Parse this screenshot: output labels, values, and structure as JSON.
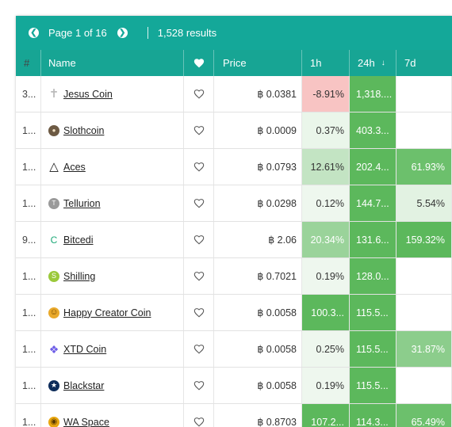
{
  "pagination": {
    "page_label": "Page 1 of 16",
    "results": "1,528 results"
  },
  "columns": {
    "rank": "#",
    "name": "Name",
    "price": "Price",
    "h1": "1h",
    "h24": "24h",
    "d7": "7d"
  },
  "rows": [
    {
      "rank": "3...",
      "name": "Jesus Coin",
      "icon": "cross-icon",
      "price": "฿ 0.0381",
      "h1": "-8.91%",
      "h1_color": "#f8c4c3",
      "h1_text": "#333333",
      "h24": "1,318....",
      "h24_color": "#5cb85c",
      "d7": "",
      "d7_color": "#ffffff",
      "d7_text": "#ffffff"
    },
    {
      "rank": "1...",
      "name": "Slothcoin",
      "icon": "sloth-icon",
      "price": "฿ 0.0009",
      "h1": "0.37%",
      "h1_color": "#eaf6ea",
      "h1_text": "#333333",
      "h24": "403.3...",
      "h24_color": "#5cb85c",
      "d7": "",
      "d7_color": "#ffffff",
      "d7_text": "#ffffff"
    },
    {
      "rank": "1...",
      "name": "Aces",
      "icon": "triangle-icon",
      "price": "฿ 0.0793",
      "h1": "12.61%",
      "h1_color": "#c3e4c3",
      "h1_text": "#333333",
      "h24": "202.4...",
      "h24_color": "#5cb85c",
      "d7": "61.93%",
      "d7_color": "#6cc06c",
      "d7_text": "#ffffff"
    },
    {
      "rank": "1...",
      "name": "Tellurion",
      "icon": "tellurion-icon",
      "price": "฿ 0.0298",
      "h1": "0.12%",
      "h1_color": "#eef7ee",
      "h1_text": "#333333",
      "h24": "144.7...",
      "h24_color": "#5cb85c",
      "d7": "5.54%",
      "d7_color": "#e2f2e2",
      "d7_text": "#333333"
    },
    {
      "rank": "9...",
      "name": "Bitcedi",
      "icon": "bitcedi-icon",
      "price": "฿ 2.06",
      "h1": "20.34%",
      "h1_color": "#9ad39a",
      "h1_text": "#ffffff",
      "h24": "131.6...",
      "h24_color": "#5cb85c",
      "d7": "159.32%",
      "d7_color": "#5cb85c",
      "d7_text": "#ffffff"
    },
    {
      "rank": "1...",
      "name": "Shilling",
      "icon": "shilling-icon",
      "price": "฿ 0.7021",
      "h1": "0.19%",
      "h1_color": "#eef7ee",
      "h1_text": "#333333",
      "h24": "128.0...",
      "h24_color": "#5cb85c",
      "d7": "",
      "d7_color": "#ffffff",
      "d7_text": "#ffffff"
    },
    {
      "rank": "1...",
      "name": "Happy Creator Coin",
      "icon": "smiley-coin-icon",
      "price": "฿ 0.0058",
      "h1": "100.3...",
      "h1_color": "#5cb85c",
      "h1_text": "#ffffff",
      "h24": "115.5...",
      "h24_color": "#5cb85c",
      "d7": "",
      "d7_color": "#ffffff",
      "d7_text": "#ffffff"
    },
    {
      "rank": "1...",
      "name": "XTD Coin",
      "icon": "xtd-icon",
      "price": "฿ 0.0058",
      "h1": "0.25%",
      "h1_color": "#eef7ee",
      "h1_text": "#333333",
      "h24": "115.5...",
      "h24_color": "#5cb85c",
      "d7": "31.87%",
      "d7_color": "#8ccd8c",
      "d7_text": "#ffffff"
    },
    {
      "rank": "1...",
      "name": "Blackstar",
      "icon": "blackstar-icon",
      "price": "฿ 0.0058",
      "h1": "0.19%",
      "h1_color": "#eef7ee",
      "h1_text": "#333333",
      "h24": "115.5...",
      "h24_color": "#5cb85c",
      "d7": "",
      "d7_color": "#ffffff",
      "d7_text": "#ffffff"
    },
    {
      "rank": "1...",
      "name": "WA Space",
      "icon": "wa-space-icon",
      "price": "฿ 0.8703",
      "h1": "107.2...",
      "h1_color": "#5cb85c",
      "h1_text": "#ffffff",
      "h24": "114.3...",
      "h24_color": "#5cb85c",
      "d7": "65.49%",
      "d7_color": "#6cc06c",
      "d7_text": "#ffffff"
    }
  ],
  "colors": {
    "header_bg": "#17a594",
    "topbar_bg": "#14a899",
    "accent": "#5cb85c"
  }
}
